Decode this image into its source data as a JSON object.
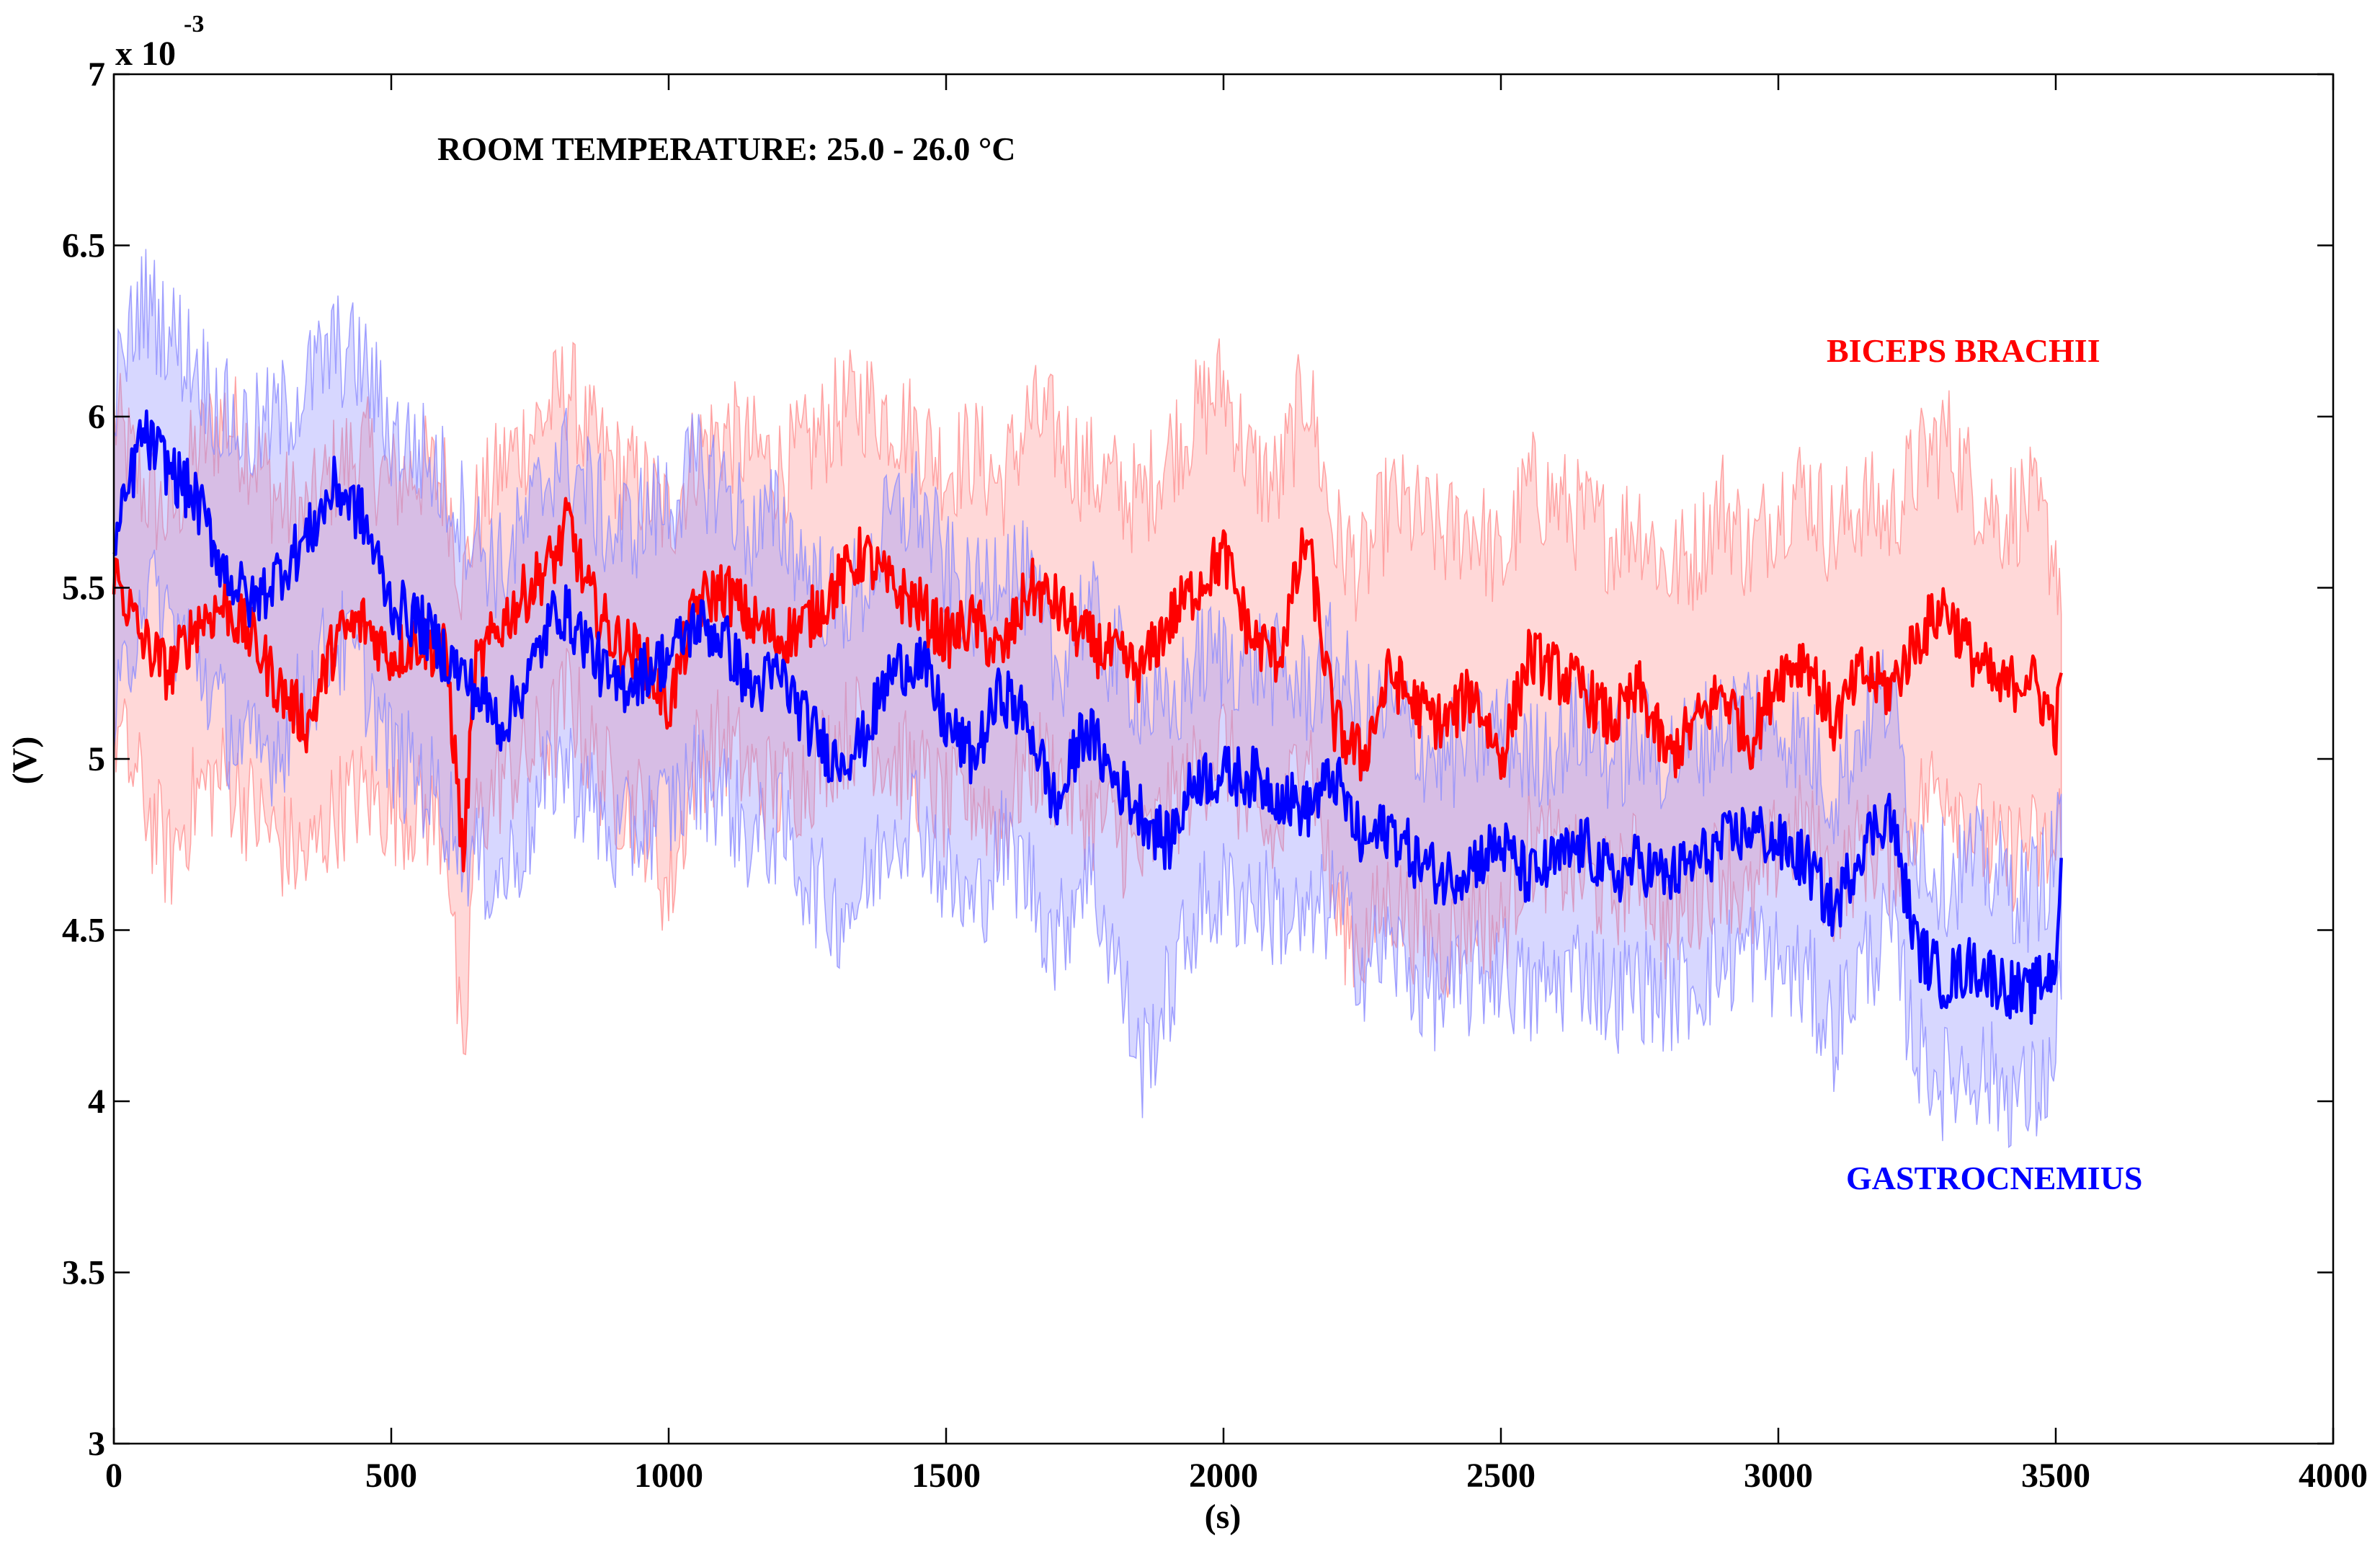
{
  "chart_data": {
    "type": "line",
    "title": "",
    "annotation": "ROOM TEMPERATURE: 25.0 - 26.0 °C",
    "xlabel": "(s)",
    "ylabel": "(V)",
    "y_scale_label_base": "x 10",
    "y_scale_label_exp": "-3",
    "xlim": [
      0,
      4000
    ],
    "ylim": [
      3,
      7
    ],
    "x_ticks": [
      0,
      500,
      1000,
      1500,
      2000,
      2500,
      3000,
      3500,
      4000
    ],
    "y_ticks": [
      3,
      3.5,
      4,
      4.5,
      5,
      5.5,
      6,
      6.5,
      7
    ],
    "x_tick_labels": [
      "0",
      "500",
      "1000",
      "1500",
      "2000",
      "2500",
      "3000",
      "3500",
      "4000"
    ],
    "y_tick_labels": [
      "3",
      "3.5",
      "4",
      "4.5",
      "5",
      "5.5",
      "6",
      "6.5",
      "7"
    ],
    "series": [
      {
        "name": "BICEPS BRACHII",
        "color": "#ff0000",
        "band_color": "#ff9090",
        "x": [
          0,
          50,
          100,
          150,
          200,
          250,
          300,
          350,
          400,
          450,
          500,
          550,
          600,
          630,
          650,
          700,
          750,
          800,
          820,
          850,
          900,
          950,
          1000,
          1050,
          1100,
          1150,
          1200,
          1250,
          1300,
          1350,
          1400,
          1450,
          1500,
          1550,
          1600,
          1650,
          1700,
          1750,
          1800,
          1850,
          1900,
          1950,
          2000,
          2050,
          2100,
          2150,
          2200,
          2250,
          2300,
          2350,
          2400,
          2450,
          2500,
          2550,
          2600,
          2650,
          2700,
          2750,
          2800,
          2850,
          2900,
          2950,
          3000,
          3050,
          3100,
          3150,
          3200,
          3250,
          3300,
          3350,
          3400,
          3450,
          3500,
          3510
        ],
        "mean": [
          5.55,
          5.35,
          5.25,
          5.4,
          5.45,
          5.35,
          5.2,
          5.1,
          5.35,
          5.4,
          5.3,
          5.35,
          5.3,
          4.7,
          5.25,
          5.4,
          5.5,
          5.6,
          5.7,
          5.5,
          5.35,
          5.3,
          5.15,
          5.45,
          5.5,
          5.4,
          5.35,
          5.4,
          5.5,
          5.6,
          5.5,
          5.45,
          5.35,
          5.4,
          5.3,
          5.5,
          5.45,
          5.35,
          5.3,
          5.25,
          5.4,
          5.5,
          5.6,
          5.35,
          5.3,
          5.65,
          5.1,
          5.0,
          5.25,
          5.15,
          5.1,
          5.2,
          5.0,
          5.3,
          5.25,
          5.2,
          5.1,
          5.2,
          5.0,
          5.1,
          5.2,
          5.05,
          5.25,
          5.3,
          5.1,
          5.25,
          5.2,
          5.35,
          5.45,
          5.3,
          5.2,
          5.25,
          5.1,
          5.2
        ],
        "upper": [
          6.0,
          5.8,
          5.7,
          5.9,
          6.0,
          5.9,
          5.75,
          5.7,
          5.85,
          5.9,
          5.8,
          5.85,
          5.8,
          5.5,
          5.7,
          5.85,
          5.95,
          6.05,
          6.1,
          5.95,
          5.85,
          5.8,
          5.7,
          5.9,
          5.95,
          5.9,
          5.85,
          5.9,
          6.0,
          6.05,
          6.0,
          5.95,
          5.85,
          5.9,
          5.8,
          6.0,
          5.95,
          5.85,
          5.8,
          5.75,
          5.9,
          6.0,
          6.1,
          5.85,
          5.8,
          6.1,
          5.65,
          5.55,
          5.75,
          5.7,
          5.65,
          5.7,
          5.55,
          5.8,
          5.75,
          5.7,
          5.65,
          5.7,
          5.55,
          5.6,
          5.75,
          5.6,
          5.75,
          5.8,
          5.65,
          5.75,
          5.7,
          5.85,
          5.95,
          5.8,
          5.7,
          5.75,
          5.6,
          5.5
        ],
        "lower": [
          5.1,
          4.9,
          4.7,
          4.9,
          4.95,
          4.85,
          4.75,
          4.7,
          4.85,
          4.9,
          4.85,
          4.85,
          4.8,
          4.0,
          4.8,
          4.95,
          5.0,
          5.1,
          5.2,
          5.05,
          4.9,
          4.85,
          4.6,
          5.0,
          5.05,
          4.95,
          4.9,
          4.95,
          5.05,
          5.1,
          5.0,
          4.95,
          4.85,
          4.9,
          4.8,
          5.0,
          4.95,
          4.85,
          4.8,
          4.7,
          4.85,
          4.95,
          5.05,
          4.8,
          4.75,
          5.1,
          4.55,
          4.45,
          4.6,
          4.5,
          4.45,
          4.55,
          4.5,
          4.75,
          4.7,
          4.65,
          4.6,
          4.7,
          4.5,
          4.6,
          4.7,
          4.55,
          4.75,
          4.8,
          4.6,
          4.75,
          4.7,
          4.85,
          4.95,
          4.8,
          4.7,
          4.75,
          4.7,
          4.85
        ]
      },
      {
        "name": "GASTROCNEMIUS",
        "color": "#0000ff",
        "band_color": "#8c8cff",
        "x": [
          0,
          50,
          100,
          150,
          200,
          250,
          300,
          350,
          400,
          450,
          500,
          550,
          600,
          650,
          700,
          750,
          800,
          850,
          900,
          950,
          1000,
          1050,
          1100,
          1150,
          1200,
          1250,
          1300,
          1350,
          1400,
          1450,
          1500,
          1550,
          1600,
          1650,
          1700,
          1750,
          1800,
          1850,
          1900,
          1950,
          2000,
          2050,
          2100,
          2150,
          2200,
          2250,
          2300,
          2350,
          2400,
          2450,
          2500,
          2550,
          2600,
          2650,
          2700,
          2750,
          2800,
          2850,
          2900,
          2950,
          3000,
          3050,
          3100,
          3150,
          3200,
          3250,
          3300,
          3350,
          3400,
          3450,
          3500,
          3510
        ],
        "mean": [
          5.6,
          5.95,
          5.85,
          5.75,
          5.55,
          5.45,
          5.55,
          5.65,
          5.8,
          5.7,
          5.45,
          5.4,
          5.3,
          5.2,
          5.1,
          5.25,
          5.45,
          5.35,
          5.2,
          5.25,
          5.3,
          5.4,
          5.35,
          5.2,
          5.25,
          5.1,
          5.0,
          5.05,
          5.25,
          5.3,
          5.1,
          5.0,
          5.2,
          5.1,
          4.85,
          5.1,
          4.95,
          4.85,
          4.75,
          4.95,
          4.95,
          4.95,
          4.9,
          4.85,
          4.95,
          4.75,
          4.8,
          4.7,
          4.65,
          4.7,
          4.75,
          4.65,
          4.7,
          4.75,
          4.65,
          4.7,
          4.65,
          4.7,
          4.75,
          4.8,
          4.75,
          4.7,
          4.55,
          4.75,
          4.85,
          4.45,
          4.35,
          4.4,
          4.35,
          4.3,
          4.4,
          4.75
        ],
        "upper": [
          6.05,
          6.35,
          6.25,
          6.15,
          6.0,
          5.95,
          6.0,
          6.1,
          6.2,
          6.15,
          5.95,
          5.9,
          5.8,
          5.65,
          5.55,
          5.7,
          5.9,
          5.8,
          5.65,
          5.7,
          5.75,
          5.85,
          5.8,
          5.65,
          5.7,
          5.55,
          5.45,
          5.5,
          5.7,
          5.75,
          5.55,
          5.45,
          5.6,
          5.5,
          5.25,
          5.45,
          5.3,
          5.2,
          5.1,
          5.3,
          5.3,
          5.3,
          5.25,
          5.2,
          5.3,
          5.1,
          5.15,
          5.05,
          5.0,
          5.05,
          5.1,
          5.0,
          5.05,
          5.1,
          5.0,
          5.05,
          5.0,
          5.05,
          5.1,
          5.15,
          5.1,
          5.05,
          4.9,
          5.1,
          5.2,
          4.75,
          4.65,
          4.7,
          4.65,
          4.6,
          4.7,
          5.0
        ],
        "lower": [
          5.05,
          5.5,
          5.4,
          5.3,
          5.1,
          5.0,
          5.05,
          5.2,
          5.35,
          5.25,
          5.0,
          4.95,
          4.85,
          4.7,
          4.65,
          4.8,
          5.0,
          4.9,
          4.75,
          4.8,
          4.85,
          4.95,
          4.9,
          4.75,
          4.8,
          4.65,
          4.55,
          4.6,
          4.8,
          4.85,
          4.65,
          4.55,
          4.75,
          4.65,
          4.45,
          4.7,
          4.45,
          4.1,
          4.3,
          4.55,
          4.6,
          4.6,
          4.55,
          4.5,
          4.6,
          4.4,
          4.45,
          4.35,
          4.3,
          4.35,
          4.4,
          4.3,
          4.35,
          4.4,
          4.3,
          4.35,
          4.3,
          4.35,
          4.4,
          4.45,
          4.4,
          4.35,
          4.2,
          4.4,
          4.5,
          4.15,
          4.05,
          4.1,
          4.05,
          4.0,
          4.1,
          4.45
        ]
      }
    ],
    "grid": false,
    "legend": "none (series labelled by text: BICEPS BRACHII at right-upper, GASTROCNEMIUS at right-lower)"
  }
}
